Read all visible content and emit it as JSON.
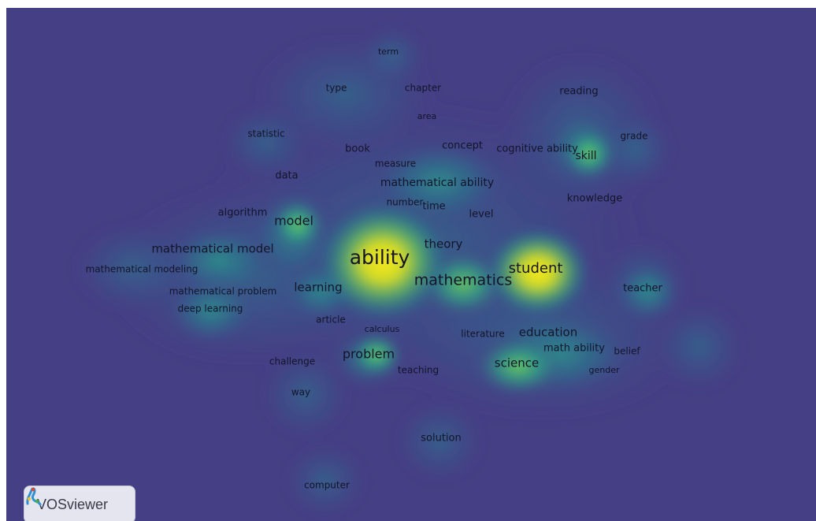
{
  "app": {
    "brand": "VOSviewer",
    "logo_icon": "vosviewer-logo-icon",
    "view": "density-visualization"
  },
  "colors": {
    "background": "#453f85",
    "low_density": "#2a7f8e",
    "mid_density": "#3cb878",
    "high_density": "#f4e61a"
  },
  "terms": [
    {
      "id": "term",
      "label": "term",
      "weight": 0.15
    },
    {
      "id": "type",
      "label": "type",
      "weight": 0.2
    },
    {
      "id": "chapter",
      "label": "chapter",
      "weight": 0.15
    },
    {
      "id": "reading",
      "label": "reading",
      "weight": 0.3
    },
    {
      "id": "area",
      "label": "area",
      "weight": 0.15
    },
    {
      "id": "statistic",
      "label": "statistic",
      "weight": 0.25
    },
    {
      "id": "grade",
      "label": "grade",
      "weight": 0.25
    },
    {
      "id": "book",
      "label": "book",
      "weight": 0.25
    },
    {
      "id": "concept",
      "label": "concept",
      "weight": 0.3
    },
    {
      "id": "cognitive-ability",
      "label": "cognitive ability",
      "weight": 0.3
    },
    {
      "id": "skill",
      "label": "skill",
      "weight": 0.5
    },
    {
      "id": "measure",
      "label": "measure",
      "weight": 0.2
    },
    {
      "id": "data",
      "label": "data",
      "weight": 0.3
    },
    {
      "id": "mathematical-ability",
      "label": "mathematical ability",
      "weight": 0.45
    },
    {
      "id": "knowledge",
      "label": "knowledge",
      "weight": 0.35
    },
    {
      "id": "number",
      "label": "number",
      "weight": 0.25
    },
    {
      "id": "time",
      "label": "time",
      "weight": 0.35
    },
    {
      "id": "level",
      "label": "level",
      "weight": 0.3
    },
    {
      "id": "algorithm",
      "label": "algorithm",
      "weight": 0.3
    },
    {
      "id": "model",
      "label": "model",
      "weight": 0.5
    },
    {
      "id": "theory",
      "label": "theory",
      "weight": 0.35
    },
    {
      "id": "mathematical-model",
      "label": "mathematical model",
      "weight": 0.45
    },
    {
      "id": "ability",
      "label": "ability",
      "weight": 1.0
    },
    {
      "id": "student",
      "label": "student",
      "weight": 0.75
    },
    {
      "id": "mathematical-modeling",
      "label": "mathematical modeling",
      "weight": 0.3
    },
    {
      "id": "mathematics",
      "label": "mathematics",
      "weight": 0.7
    },
    {
      "id": "mathematical-problem",
      "label": "mathematical problem",
      "weight": 0.3
    },
    {
      "id": "learning",
      "label": "learning",
      "weight": 0.4
    },
    {
      "id": "teacher",
      "label": "teacher",
      "weight": 0.35
    },
    {
      "id": "deep-learning",
      "label": "deep learning",
      "weight": 0.3
    },
    {
      "id": "article",
      "label": "article",
      "weight": 0.2
    },
    {
      "id": "calculus",
      "label": "calculus",
      "weight": 0.15
    },
    {
      "id": "literature",
      "label": "literature",
      "weight": 0.3
    },
    {
      "id": "education",
      "label": "education",
      "weight": 0.45
    },
    {
      "id": "math-ability",
      "label": "math ability",
      "weight": 0.35
    },
    {
      "id": "belief",
      "label": "belief",
      "weight": 0.3
    },
    {
      "id": "problem",
      "label": "problem",
      "weight": 0.5
    },
    {
      "id": "challenge",
      "label": "challenge",
      "weight": 0.3
    },
    {
      "id": "teaching",
      "label": "teaching",
      "weight": 0.3
    },
    {
      "id": "science",
      "label": "science",
      "weight": 0.5
    },
    {
      "id": "gender",
      "label": "gender",
      "weight": 0.2
    },
    {
      "id": "way",
      "label": "way",
      "weight": 0.25
    },
    {
      "id": "solution",
      "label": "solution",
      "weight": 0.3
    },
    {
      "id": "computer",
      "label": "computer",
      "weight": 0.3
    }
  ]
}
